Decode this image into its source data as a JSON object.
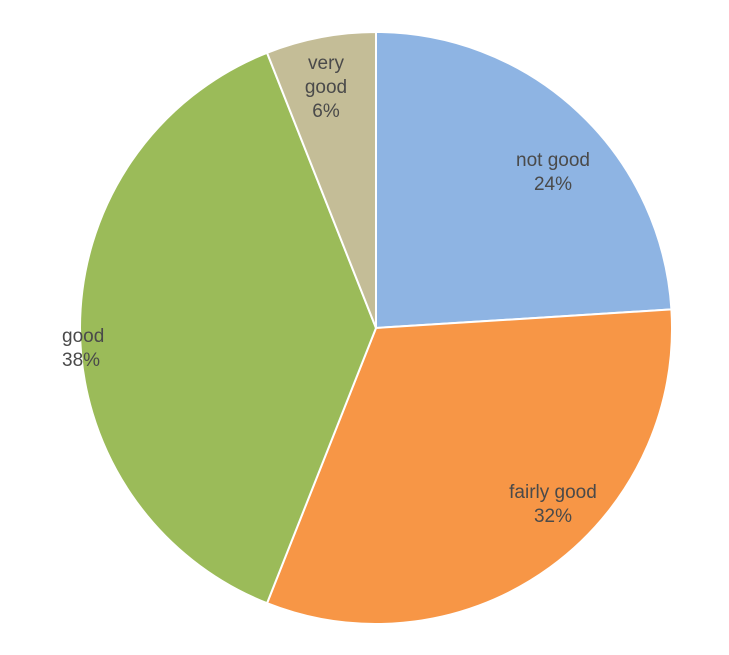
{
  "chart_data": {
    "type": "pie",
    "title": "",
    "slices": [
      {
        "label": "not good",
        "value": 24,
        "value_label": "24%",
        "color": "#8eb4e3"
      },
      {
        "label": "fairly good",
        "value": 32,
        "value_label": "32%",
        "color": "#f79646"
      },
      {
        "label": "good",
        "value": 38,
        "value_label": "38%",
        "color": "#9bbb59"
      },
      {
        "label": "very good",
        "value": 6,
        "value_label": "6%",
        "color": "#c4bd97"
      }
    ],
    "start_angle": "12 o'clock",
    "direction": "clockwise",
    "legend": "none",
    "data_labels": "category and percentage on slice"
  }
}
